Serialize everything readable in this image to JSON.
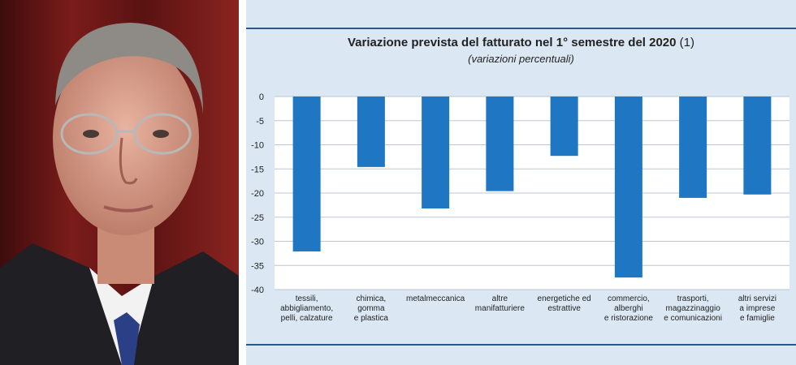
{
  "chart_data": {
    "type": "bar",
    "title": "Variazione prevista del fatturato nel 1° semestre del 2020",
    "title_note": "(1)",
    "subtitle": "(variazioni percentuali)",
    "categories": [
      [
        "tessili,",
        "abbigliamento,",
        "pelli, calzature"
      ],
      [
        "chimica,",
        "gomma",
        "e plastica"
      ],
      [
        "metalmeccanica"
      ],
      [
        "altre",
        "manifatturiere"
      ],
      [
        "energetiche ed",
        "estrattive"
      ],
      [
        "commercio,",
        "alberghi",
        "e ristorazione"
      ],
      [
        "trasporti,",
        "magazzinaggio",
        "e comunicazioni"
      ],
      [
        "altri servizi",
        "a imprese",
        "e famiglie"
      ]
    ],
    "values": [
      -32.1,
      -14.6,
      -23.2,
      -19.6,
      -12.3,
      -37.5,
      -21.0,
      -20.3
    ],
    "ylim": [
      -40,
      0
    ],
    "yticks": [
      0,
      -5,
      -10,
      -15,
      -20,
      -25,
      -30,
      -35,
      -40
    ],
    "bar_color": "#1f77c4",
    "grid": true
  }
}
